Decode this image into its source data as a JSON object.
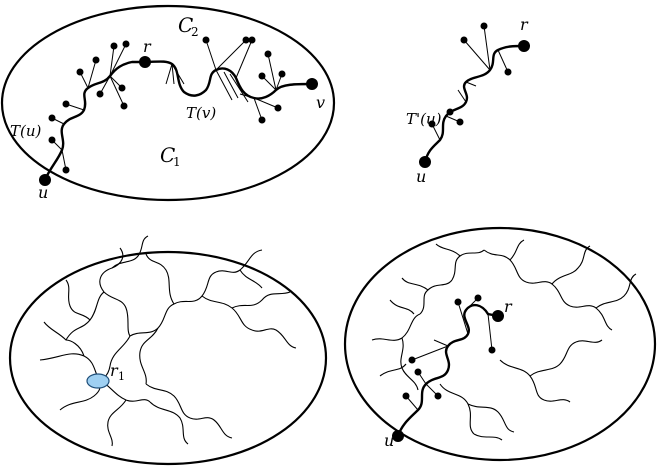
{
  "colors": {
    "ink": "#000000",
    "background": "#ffffff",
    "root_highlight": "#9fd0f2",
    "root_highlight_stroke": "#1f4f7a"
  },
  "panels": {
    "top_left": {
      "label_c2": "C",
      "label_c2_sub": "2",
      "label_c1": "C",
      "label_c1_sub": "1",
      "label_r": "r",
      "label_v": "v",
      "label_u": "u",
      "label_tu": "T(u)",
      "label_tv": "T(v)"
    },
    "top_right": {
      "label_r": "r",
      "label_tprime": "T'(u)",
      "label_u": "u"
    },
    "bottom_left": {
      "label_r1": "r",
      "label_r1_sub": "1"
    },
    "bottom_right": {
      "label_r": "r",
      "label_u": "u"
    }
  }
}
